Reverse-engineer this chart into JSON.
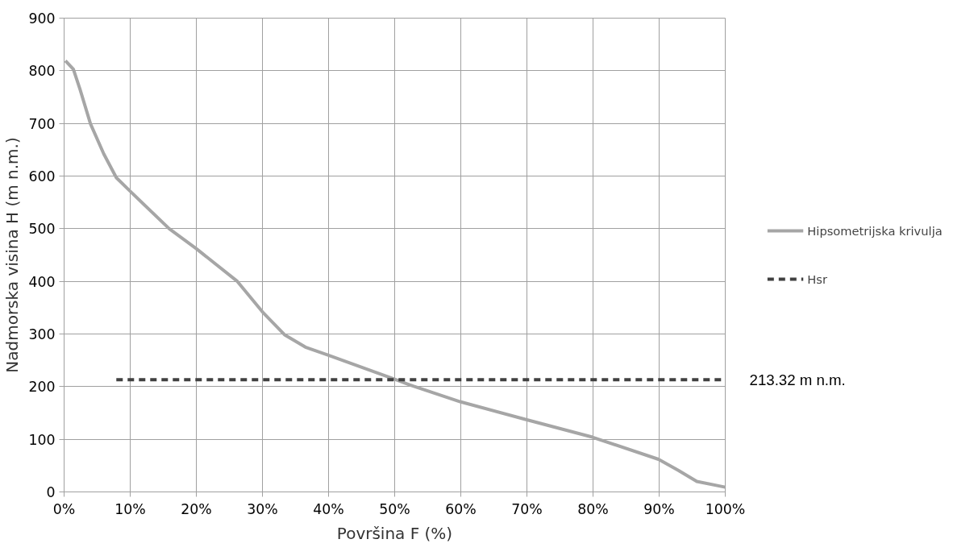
{
  "chart_data": {
    "type": "line",
    "xlabel": "Površina F (%)",
    "ylabel": "Nadmorska visina H (m n.m.)",
    "series": [
      {
        "name": "Hipsometrijska krivulja",
        "color": "#a6a6a6",
        "line_style": "solid",
        "x": [
          0.2,
          1.4,
          2.4,
          4.0,
          6.0,
          7.9,
          10,
          15.9,
          20,
          26.2,
          30,
          33.4,
          36.5,
          39.9,
          50,
          52.8,
          60,
          70,
          79.9,
          89.9,
          92.9,
          95.7,
          100
        ],
        "values": [
          819,
          803,
          765,
          699,
          642,
          597,
          571,
          500,
          462,
          400,
          342,
          298,
          275,
          260,
          214,
          201,
          171,
          137,
          104,
          62,
          41,
          20,
          9
        ]
      },
      {
        "name": "Hsr",
        "color": "#404040",
        "line_style": "dashed",
        "x": [
          7.9,
          100
        ],
        "values": [
          213.32,
          213.32
        ]
      }
    ],
    "xlim": [
      0,
      100
    ],
    "xticks": [
      {
        "value": 0,
        "label": "0%"
      },
      {
        "value": 10,
        "label": "10%"
      },
      {
        "value": 20,
        "label": "20%"
      },
      {
        "value": 30,
        "label": "30%"
      },
      {
        "value": 40,
        "label": "40%"
      },
      {
        "value": 50,
        "label": "50%"
      },
      {
        "value": 60,
        "label": "60%"
      },
      {
        "value": 70,
        "label": "70%"
      },
      {
        "value": 80,
        "label": "80%"
      },
      {
        "value": 90,
        "label": "90%"
      },
      {
        "value": 100,
        "label": "100%"
      }
    ],
    "ylim": [
      0,
      900
    ],
    "yticks": [
      0,
      100,
      200,
      300,
      400,
      500,
      600,
      700,
      800,
      900
    ],
    "grid": true,
    "legend": "right",
    "marker": "none",
    "annotations": [
      {
        "text": "213.32 m n.m.",
        "x": 100,
        "y": 213.32
      }
    ]
  }
}
